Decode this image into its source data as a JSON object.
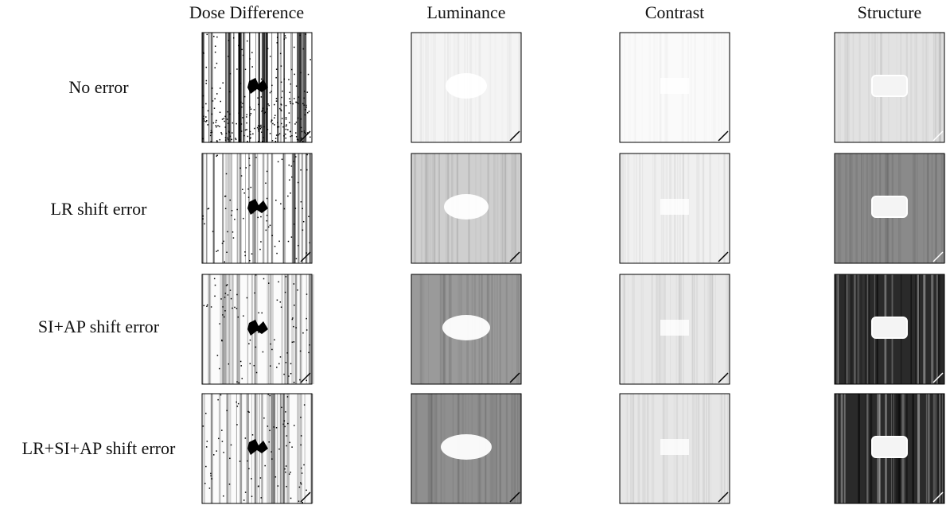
{
  "columns": [
    "Dose Difference",
    "Luminance",
    "Contrast",
    "Structure"
  ],
  "rows": [
    "No error",
    "LR shift error",
    "SI+AP shift error",
    "LR+SI+AP shift error"
  ]
}
